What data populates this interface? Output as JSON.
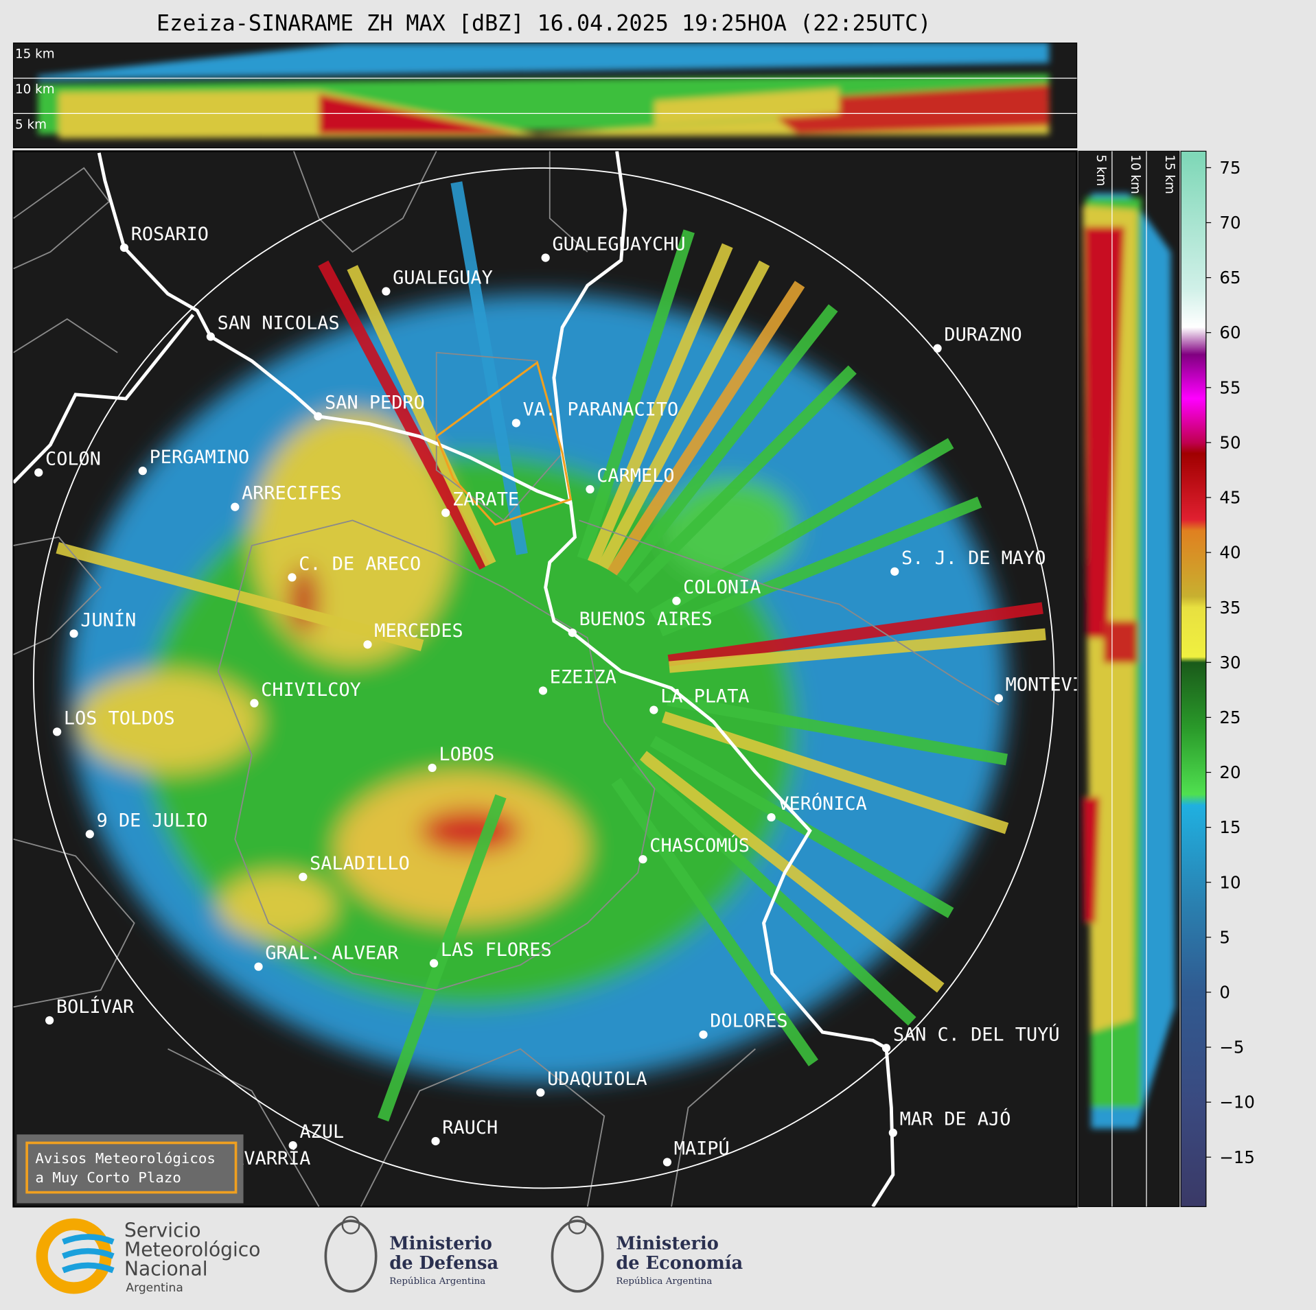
{
  "title": "Ezeiza-SINARAME ZH MAX [dBZ] 16.04.2025 19:25HOA (22:25UTC)",
  "cross_section_top": {
    "height_labels": [
      "15 km",
      "10 km",
      "5 km"
    ]
  },
  "cross_section_side": {
    "height_labels": [
      "5 km",
      "10 km",
      "15 km"
    ]
  },
  "cities": [
    "ROSARIO",
    "GUALEGUAYCHU",
    "GUALEGUAY",
    "SAN NICOLAS",
    "DURAZNO",
    "SAN PEDRO",
    "VA. PARANACITO",
    "COLON",
    "PERGAMINO",
    "CARMELO",
    "ARRECIFES",
    "ZARATE",
    "S. J. DE MAYO",
    "C. DE ARECO",
    "COLONIA",
    "JUNÍN",
    "BUENOS AIRES",
    "MERCEDES",
    "EZEIZA",
    "MONTEVIDEO",
    "CHIVILCOY",
    "LA PLATA",
    "LOS TOLDOS",
    "LOBOS",
    "VERÓNICA",
    "9 DE JULIO",
    "CHASCOMÚS",
    "SALADILLO",
    "GRAL. ALVEAR",
    "LAS FLORES",
    "BOLÍVAR",
    "DOLORES",
    "SAN C. DEL TUYÚ",
    "UDAQUIOLA",
    "MAR DE AJÓ",
    "RAUCH",
    "AZUL",
    "OLAVARRÍA",
    "MAIPÚ"
  ],
  "colorbar": {
    "range": [
      -19.5,
      76.5
    ],
    "ticks": [
      {
        "value": -15,
        "label": "−15"
      },
      {
        "value": -10,
        "label": "−10"
      },
      {
        "value": -5,
        "label": "−5"
      },
      0,
      5,
      10,
      15,
      20,
      25,
      30,
      35,
      40,
      45,
      50,
      55,
      60,
      65,
      70,
      75
    ]
  },
  "warning_box": {
    "lines": [
      "Avisos Meteorológicos",
      "a Muy Corto Plazo"
    ]
  },
  "logos": {
    "smn": [
      "Servicio",
      "Meteorológico",
      "Nacional",
      "Argentina"
    ],
    "defensa": [
      "Ministerio",
      "de Defensa",
      "República Argentina"
    ],
    "economia": [
      "Ministerio",
      "de Economía",
      "República Argentina"
    ]
  }
}
